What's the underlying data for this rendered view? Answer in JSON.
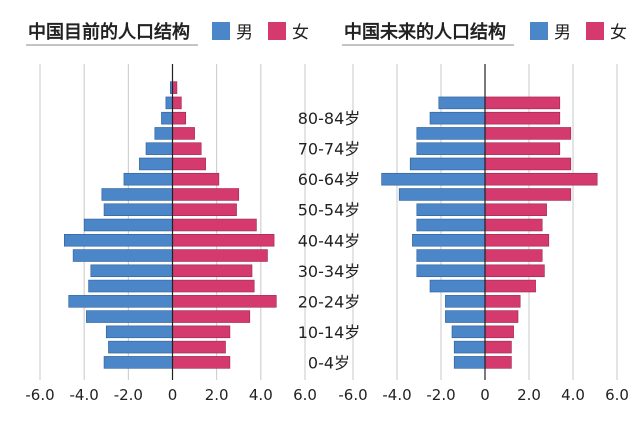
{
  "colors": {
    "male": "#4a86c8",
    "female": "#d43a6e",
    "grid": "#c8c8c8",
    "axis": "#222222"
  },
  "tick_labels": [
    "-6.0",
    "-4.0",
    "-2.0",
    "0",
    "2.0",
    "4.0",
    "6.0"
  ],
  "age_labels": [
    "80-84岁",
    "70-74岁",
    "60-64岁",
    "50-54岁",
    "40-44岁",
    "30-34岁",
    "20-24岁",
    "10-14岁",
    "0-4岁"
  ],
  "chart_data": [
    {
      "type": "bar",
      "title": "中国目前的人口结构",
      "legend": [
        "男",
        "女"
      ],
      "age_groups": [
        "0-4",
        "5-9",
        "10-14",
        "15-19",
        "20-24",
        "25-29",
        "30-34",
        "35-39",
        "40-44",
        "45-49",
        "50-54",
        "55-59",
        "60-64",
        "65-69",
        "70-74",
        "75-79",
        "80-84",
        "85-89",
        "90+"
      ],
      "series": [
        {
          "name": "男",
          "values": [
            -3.1,
            -2.9,
            -3.0,
            -3.9,
            -4.7,
            -3.8,
            -3.7,
            -4.5,
            -4.9,
            -4.0,
            -3.1,
            -3.2,
            -2.2,
            -1.5,
            -1.2,
            -0.8,
            -0.5,
            -0.3,
            -0.1
          ]
        },
        {
          "name": "女",
          "values": [
            2.6,
            2.4,
            2.6,
            3.5,
            4.7,
            3.7,
            3.6,
            4.3,
            4.6,
            3.8,
            2.9,
            3.0,
            2.1,
            1.5,
            1.3,
            1.0,
            0.6,
            0.4,
            0.2
          ]
        }
      ],
      "xlim": [
        -6.0,
        6.0
      ],
      "grid": true,
      "legend_position": "top-right"
    },
    {
      "type": "bar",
      "title": "中国未来的人口结构",
      "legend": [
        "男",
        "女"
      ],
      "age_groups": [
        "0-4",
        "5-9",
        "10-14",
        "15-19",
        "20-24",
        "25-29",
        "30-34",
        "35-39",
        "40-44",
        "45-49",
        "50-54",
        "55-59",
        "60-64",
        "65-69",
        "70-74",
        "75-79",
        "80-84",
        "85-89",
        "90+"
      ],
      "series": [
        {
          "name": "男",
          "values": [
            -1.4,
            -1.4,
            -1.5,
            -1.8,
            -1.8,
            -2.5,
            -3.1,
            -3.1,
            -3.3,
            -3.1,
            -3.1,
            -3.9,
            -4.7,
            -3.4,
            -3.1,
            -3.1,
            -2.5,
            -2.1,
            0
          ]
        },
        {
          "name": "女",
          "values": [
            1.2,
            1.2,
            1.3,
            1.5,
            1.6,
            2.3,
            2.7,
            2.6,
            2.9,
            2.6,
            2.8,
            3.9,
            5.1,
            3.9,
            3.4,
            3.9,
            3.4,
            3.4,
            0
          ]
        }
      ],
      "xlim": [
        -6.0,
        6.0
      ],
      "grid": true,
      "legend_position": "top-right"
    }
  ]
}
